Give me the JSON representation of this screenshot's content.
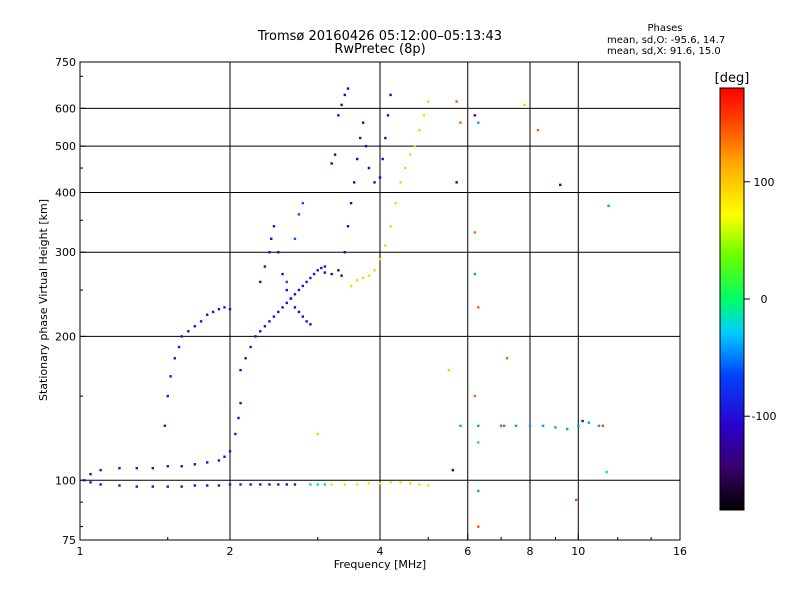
{
  "chart_data": {
    "type": "scatter",
    "title": "Tromsø 20160426 05:12:00–05:13:43",
    "subtitle": "RwPretec (8p)",
    "phases": {
      "title": "Phases",
      "line_o": "mean, sd,O: -95.6, 14.7",
      "line_x": "mean, sd,X:  91.6, 15.0"
    },
    "xlabel": "Frequency [MHz]",
    "ylabel": "Stationary phase Virtual Height [km]",
    "x_scale": "log2",
    "y_scale": "log",
    "xlim": [
      1,
      16
    ],
    "ylim": [
      75,
      750
    ],
    "x_ticks": [
      1,
      2,
      4,
      6,
      8,
      10,
      16
    ],
    "y_ticks": [
      75,
      100,
      200,
      300,
      400,
      500,
      600,
      750
    ],
    "grid_x": [
      2,
      4,
      6,
      8,
      10
    ],
    "grid_y": [
      100,
      200,
      300,
      400,
      500,
      600
    ],
    "colorbar": {
      "label": "[deg]",
      "range": [
        -180,
        180
      ],
      "ticks": [
        -100,
        0,
        100
      ]
    },
    "series": [
      {
        "phase": -95,
        "points": [
          [
            1.02,
            100
          ],
          [
            1.05,
            99
          ],
          [
            1.1,
            98
          ],
          [
            1.2,
            97.5
          ],
          [
            1.3,
            97
          ],
          [
            1.4,
            97
          ],
          [
            1.5,
            97
          ],
          [
            1.6,
            97
          ],
          [
            1.7,
            97.5
          ],
          [
            1.8,
            97.5
          ],
          [
            1.9,
            97.5
          ],
          [
            2.0,
            98
          ],
          [
            2.1,
            98
          ],
          [
            2.2,
            98
          ],
          [
            2.3,
            98
          ],
          [
            2.4,
            98
          ],
          [
            2.5,
            98
          ],
          [
            2.6,
            98
          ],
          [
            2.7,
            98
          ]
        ]
      },
      {
        "phase": -100,
        "points": [
          [
            1.05,
            103
          ],
          [
            1.1,
            105
          ],
          [
            1.2,
            106
          ],
          [
            1.3,
            106
          ],
          [
            1.4,
            106
          ],
          [
            1.5,
            107
          ],
          [
            1.6,
            107
          ],
          [
            1.7,
            108
          ],
          [
            1.8,
            109
          ],
          [
            1.9,
            110
          ],
          [
            1.95,
            112
          ],
          [
            2.0,
            115
          ],
          [
            2.05,
            125
          ],
          [
            2.08,
            135
          ],
          [
            2.1,
            145
          ]
        ]
      },
      {
        "phase": -95,
        "points": [
          [
            1.48,
            130
          ],
          [
            1.5,
            150
          ],
          [
            1.52,
            165
          ],
          [
            1.55,
            180
          ],
          [
            1.58,
            190
          ],
          [
            1.6,
            200
          ],
          [
            1.65,
            205
          ],
          [
            1.7,
            210
          ],
          [
            1.75,
            215
          ],
          [
            1.8,
            222
          ],
          [
            1.85,
            225
          ],
          [
            1.9,
            228
          ],
          [
            1.95,
            230
          ],
          [
            2.0,
            228
          ]
        ]
      },
      {
        "phase": -100,
        "points": [
          [
            2.1,
            170
          ],
          [
            2.15,
            180
          ],
          [
            2.2,
            190
          ],
          [
            2.25,
            200
          ],
          [
            2.3,
            205
          ],
          [
            2.35,
            210
          ],
          [
            2.4,
            215
          ],
          [
            2.45,
            220
          ],
          [
            2.5,
            225
          ],
          [
            2.55,
            230
          ],
          [
            2.6,
            235
          ],
          [
            2.65,
            240
          ],
          [
            2.7,
            245
          ],
          [
            2.75,
            250
          ],
          [
            2.8,
            255
          ],
          [
            2.85,
            260
          ],
          [
            2.9,
            265
          ],
          [
            2.95,
            270
          ],
          [
            3.0,
            275
          ],
          [
            3.05,
            278
          ],
          [
            3.1,
            280
          ]
        ]
      },
      {
        "phase": -105,
        "points": [
          [
            2.3,
            260
          ],
          [
            2.35,
            280
          ],
          [
            2.4,
            300
          ],
          [
            2.42,
            320
          ],
          [
            2.45,
            340
          ],
          [
            2.5,
            300
          ],
          [
            2.55,
            270
          ],
          [
            2.6,
            250
          ],
          [
            2.65,
            240
          ],
          [
            2.7,
            230
          ],
          [
            2.75,
            225
          ],
          [
            2.8,
            220
          ],
          [
            2.85,
            215
          ],
          [
            2.9,
            212
          ]
        ]
      },
      {
        "phase": -110,
        "points": [
          [
            3.2,
            460
          ],
          [
            3.25,
            480
          ],
          [
            3.4,
            300
          ],
          [
            3.45,
            340
          ],
          [
            3.5,
            380
          ],
          [
            3.55,
            420
          ],
          [
            3.6,
            470
          ],
          [
            3.65,
            520
          ],
          [
            3.7,
            560
          ],
          [
            3.75,
            500
          ],
          [
            3.8,
            450
          ],
          [
            3.9,
            420
          ],
          [
            4.0,
            430
          ],
          [
            4.05,
            470
          ],
          [
            4.1,
            520
          ],
          [
            4.15,
            580
          ],
          [
            4.2,
            640
          ]
        ]
      },
      {
        "phase": -115,
        "points": [
          [
            3.3,
            580
          ],
          [
            3.35,
            610
          ],
          [
            3.4,
            640
          ],
          [
            3.45,
            660
          ]
        ]
      },
      {
        "phase": -60,
        "points": [
          [
            2.6,
            260
          ],
          [
            2.7,
            320
          ],
          [
            2.75,
            360
          ],
          [
            2.8,
            380
          ]
        ]
      },
      {
        "phase": 95,
        "points": [
          [
            3.5,
            255
          ],
          [
            3.6,
            262
          ],
          [
            3.7,
            265
          ],
          [
            3.8,
            268
          ],
          [
            3.9,
            275
          ],
          [
            4.0,
            290
          ],
          [
            4.1,
            310
          ],
          [
            4.2,
            340
          ],
          [
            4.3,
            380
          ],
          [
            4.4,
            420
          ],
          [
            4.5,
            450
          ],
          [
            4.6,
            480
          ],
          [
            4.7,
            500
          ],
          [
            4.8,
            540
          ],
          [
            4.9,
            580
          ],
          [
            5.0,
            620
          ]
        ]
      },
      {
        "phase": 90,
        "points": [
          [
            3.2,
            98
          ],
          [
            3.4,
            98
          ],
          [
            3.6,
            98
          ],
          [
            3.8,
            98.5
          ],
          [
            4.0,
            98.5
          ],
          [
            4.2,
            99
          ],
          [
            4.4,
            99
          ],
          [
            4.6,
            98.5
          ],
          [
            4.8,
            98
          ],
          [
            5.0,
            97.5
          ]
        ]
      },
      {
        "phase": -20,
        "points": [
          [
            2.9,
            98
          ],
          [
            3.0,
            98
          ],
          [
            3.1,
            98
          ]
        ]
      },
      {
        "phase": -130,
        "points": [
          [
            3.3,
            275
          ],
          [
            3.35,
            268
          ],
          [
            3.2,
            270
          ],
          [
            3.1,
            272
          ]
        ]
      },
      {
        "phase": 140,
        "points": [
          [
            5.7,
            620
          ],
          [
            5.8,
            560
          ],
          [
            6.2,
            330
          ],
          [
            6.3,
            230
          ],
          [
            6.2,
            150
          ],
          [
            8.3,
            540
          ],
          [
            7.2,
            180
          ]
        ]
      },
      {
        "phase": -40,
        "points": [
          [
            6.3,
            560
          ],
          [
            6.2,
            270
          ],
          [
            6.3,
            130
          ],
          [
            7.1,
            130
          ],
          [
            7.5,
            130
          ],
          [
            8.0,
            130
          ],
          [
            8.5,
            130
          ],
          [
            9.0,
            129
          ],
          [
            9.5,
            128
          ],
          [
            10.0,
            130
          ],
          [
            10.5,
            132
          ],
          [
            11.0,
            130
          ],
          [
            11.5,
            375
          ],
          [
            5.8,
            130
          ],
          [
            6.3,
            95
          ]
        ]
      },
      {
        "phase": -110,
        "points": [
          [
            5.7,
            420
          ],
          [
            5.6,
            105
          ],
          [
            6.2,
            580
          ],
          [
            9.2,
            415
          ],
          [
            10.2,
            133
          ]
        ]
      },
      {
        "phase": 150,
        "points": [
          [
            7.0,
            130
          ],
          [
            9.9,
            91
          ],
          [
            11.2,
            130
          ],
          [
            6.3,
            80
          ]
        ]
      },
      {
        "phase": 100,
        "points": [
          [
            7.8,
            610
          ],
          [
            3.0,
            125
          ],
          [
            5.5,
            170
          ]
        ]
      },
      {
        "phase": -10,
        "points": [
          [
            11.4,
            104
          ],
          [
            6.3,
            120
          ]
        ]
      }
    ]
  }
}
